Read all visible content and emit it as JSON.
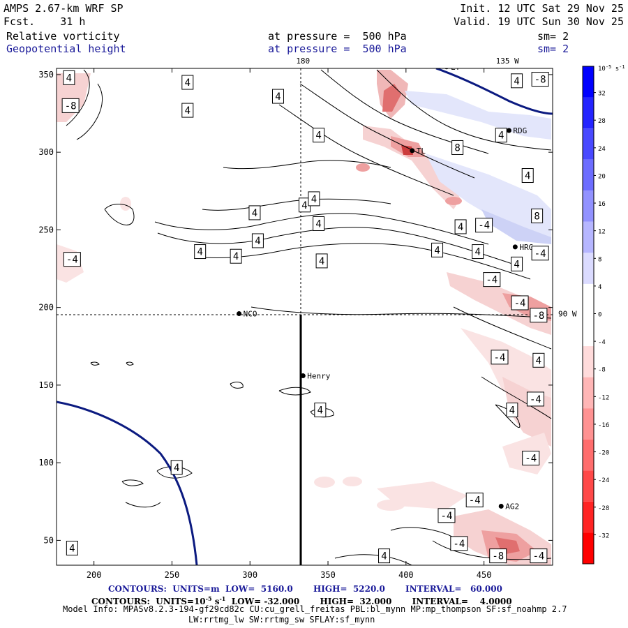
{
  "header": {
    "model": "AMPS 2.67-km WRF SP",
    "forecast": "Fcst.    31 h",
    "init": "Init. 12 UTC Sat 29 Nov 25",
    "valid": "Valid. 19 UTC Sun 30 Nov 25",
    "field1": {
      "name": "Relative vorticity",
      "level": "at pressure =  500 hPa",
      "smooth": "sm= 2"
    },
    "field2": {
      "name": "Geopotential height",
      "level": "at pressure =  500 hPa",
      "smooth": "sm= 2"
    }
  },
  "axes": {
    "x_ticks": [
      200,
      250,
      300,
      350,
      400,
      450
    ],
    "y_ticks": [
      50,
      100,
      150,
      200,
      250,
      300,
      350
    ],
    "xlim": [
      176,
      494
    ],
    "ylim": [
      34,
      354
    ],
    "meridian_labels": [
      {
        "text": "180",
        "at": "top",
        "x": 334
      },
      {
        "text": "135 W",
        "at": "top",
        "x": 465
      },
      {
        "text": "90 W",
        "at": "right",
        "y": 196
      }
    ]
  },
  "colorbar": {
    "unit": "10^-5 s^-1",
    "unit_text": "10",
    "unit_exp": "-5",
    "unit_suffix": "s",
    "unit_suffix_exp": "-1",
    "labels": [
      "32",
      "28",
      "24",
      "20",
      "16",
      "12",
      "8",
      "4",
      "0",
      "-4",
      "-8",
      "-12",
      "-16",
      "-20",
      "-24",
      "-28",
      "-32"
    ],
    "positive_color": "#0000ff",
    "negative_color": "#ff0000"
  },
  "stations": [
    {
      "name": "NCO",
      "x": 293,
      "y": 196
    },
    {
      "name": "Henry",
      "x": 334,
      "y": 156
    },
    {
      "name": "RDG",
      "x": 466,
      "y": 314
    },
    {
      "name": "HRG",
      "x": 470,
      "y": 239
    },
    {
      "name": "AG2",
      "x": 461,
      "y": 72
    },
    {
      "name": "LT",
      "x": 426,
      "y": 355
    },
    {
      "name": "TL",
      "x": 404,
      "y": 301
    }
  ],
  "contour_labels": [
    {
      "text": "4",
      "x": 184,
      "y": 348
    },
    {
      "text": "-8",
      "x": 185,
      "y": 330
    },
    {
      "text": "4",
      "x": 260,
      "y": 345
    },
    {
      "text": "4",
      "x": 260,
      "y": 327
    },
    {
      "text": "4",
      "x": 318,
      "y": 336
    },
    {
      "text": "4",
      "x": 344,
      "y": 311
    },
    {
      "text": "-8",
      "x": 486,
      "y": 347
    },
    {
      "text": "4",
      "x": 471,
      "y": 346
    },
    {
      "text": "4",
      "x": 461,
      "y": 311
    },
    {
      "text": "8",
      "x": 433,
      "y": 303
    },
    {
      "text": "4",
      "x": 478,
      "y": 285
    },
    {
      "text": "4",
      "x": 335,
      "y": 266
    },
    {
      "text": "4",
      "x": 341,
      "y": 270
    },
    {
      "text": "4",
      "x": 303,
      "y": 261
    },
    {
      "text": "4",
      "x": 344,
      "y": 254
    },
    {
      "text": "8",
      "x": 484,
      "y": 259
    },
    {
      "text": "-4",
      "x": 450,
      "y": 253
    },
    {
      "text": "4",
      "x": 435,
      "y": 252
    },
    {
      "text": "4",
      "x": 305,
      "y": 243
    },
    {
      "text": "4",
      "x": 268,
      "y": 236
    },
    {
      "text": "4",
      "x": 291,
      "y": 233
    },
    {
      "text": "4",
      "x": 420,
      "y": 237
    },
    {
      "text": "4",
      "x": 446,
      "y": 236
    },
    {
      "text": "4",
      "x": 471,
      "y": 228
    },
    {
      "text": "-4",
      "x": 486,
      "y": 235
    },
    {
      "text": "-4",
      "x": 186,
      "y": 231
    },
    {
      "text": "4",
      "x": 346,
      "y": 230
    },
    {
      "text": "-4",
      "x": 455,
      "y": 218
    },
    {
      "text": "-4",
      "x": 473,
      "y": 203
    },
    {
      "text": "-8",
      "x": 485,
      "y": 195
    },
    {
      "text": "-4",
      "x": 460,
      "y": 168
    },
    {
      "text": "4",
      "x": 485,
      "y": 166
    },
    {
      "text": "-4",
      "x": 483,
      "y": 141
    },
    {
      "text": "4",
      "x": 468,
      "y": 134
    },
    {
      "text": "4",
      "x": 345,
      "y": 134
    },
    {
      "text": "-4",
      "x": 480,
      "y": 103
    },
    {
      "text": "4",
      "x": 253,
      "y": 97
    },
    {
      "text": "-4",
      "x": 444,
      "y": 76
    },
    {
      "text": "-4",
      "x": 426,
      "y": 66
    },
    {
      "text": "-4",
      "x": 434,
      "y": 48
    },
    {
      "text": "-8",
      "x": 459,
      "y": 40
    },
    {
      "text": "-4",
      "x": 485,
      "y": 40
    },
    {
      "text": "4",
      "x": 186,
      "y": 45
    },
    {
      "text": "4",
      "x": 386,
      "y": 40
    }
  ],
  "footer": {
    "contours_height": "CONTOURS:  UNITS=m  LOW=  5160.0       HIGH=  5220.0       INTERVAL=   60.000",
    "contours_vort_pre": "CONTOURS:  UNITS=10",
    "contours_vort_exp1": "-5",
    "contours_vort_mid": " s",
    "contours_vort_exp2": "-1",
    "contours_vort_post": "  LOW= -32.000       HIGH=  32.000       INTERVAL=    4.0000",
    "model_info": "Model Info: MPASv8.2.3-194-gf29cd82c CU:cu_grell_freitas PBL:bl_mynn MP:mp_thompson SF:sf_noahmp 2.7",
    "model_info2": "LW:rrtmg_lw SW:rrtmg_sw SFLAY:sf_mynn"
  }
}
